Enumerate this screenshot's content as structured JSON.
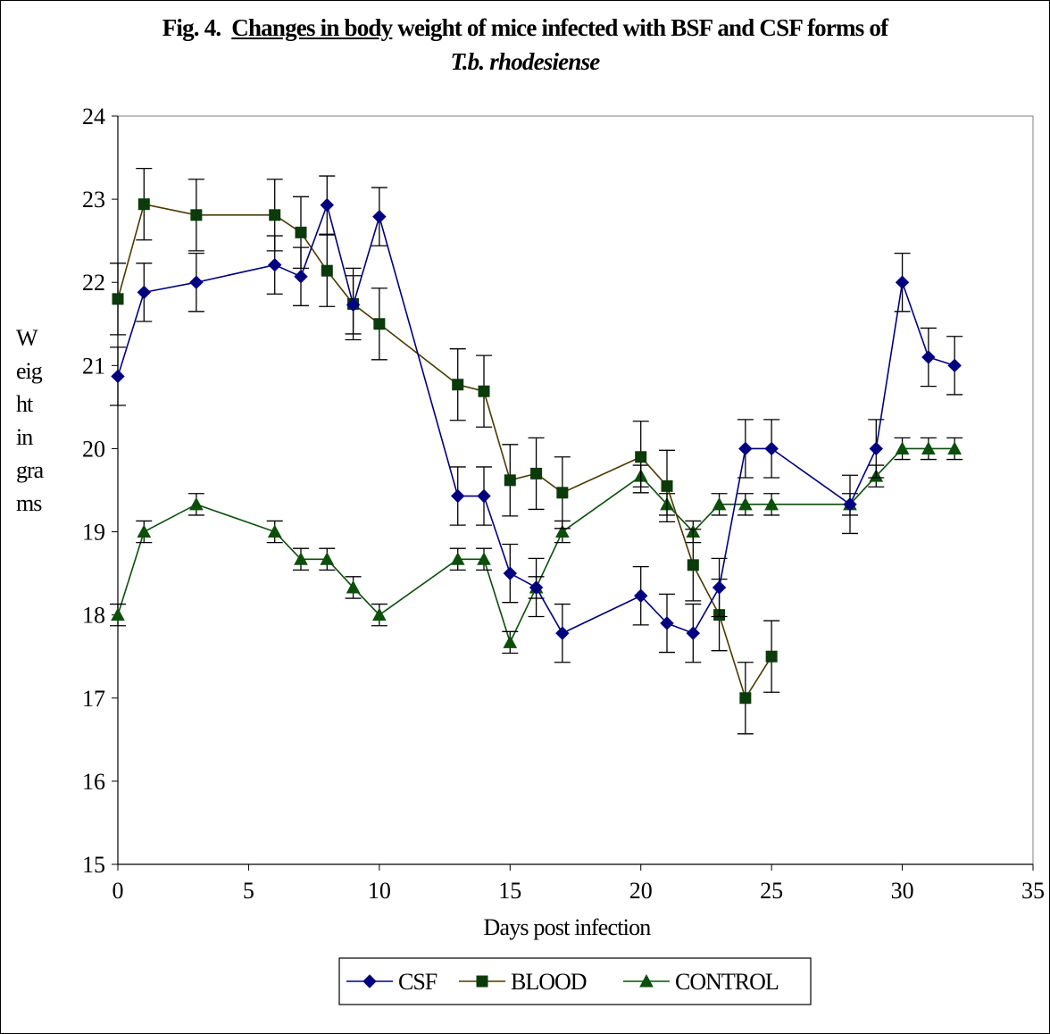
{
  "title": {
    "prefix": "Fig. 4.",
    "underlined": "Changes in body",
    "rest": " weight of mice infected with BSF and CSF forms of",
    "line2": "T.b. rhodesiense"
  },
  "chart_data": {
    "type": "line",
    "title": "Fig. 4.  Changes in body weight of mice infected with BSF and CSF forms of T.b. rhodesiense",
    "xlabel": "Days post infection",
    "ylabel_lines": [
      "W",
      "eig",
      "ht",
      "in",
      "gra",
      "ms"
    ],
    "xlim": [
      0,
      35
    ],
    "ylim": [
      15,
      24
    ],
    "xticks": [
      "0",
      "5",
      "10",
      "15",
      "20",
      "25",
      "30",
      "35"
    ],
    "yticks": [
      "15",
      "16",
      "17",
      "18",
      "19",
      "20",
      "21",
      "22",
      "23",
      "24"
    ],
    "grid": false,
    "legend_position": "bottom",
    "series": [
      {
        "name": "CSF",
        "color": "#000080",
        "marker": "diamond",
        "x": [
          0,
          1,
          3,
          6,
          7,
          8,
          9,
          10,
          13,
          14,
          15,
          16,
          17,
          20,
          21,
          22,
          23,
          24,
          25,
          28,
          29,
          30,
          31,
          32
        ],
        "y": [
          20.87,
          21.88,
          22.0,
          22.21,
          22.07,
          22.93,
          21.73,
          22.79,
          19.43,
          19.43,
          18.5,
          18.33,
          17.78,
          18.23,
          17.9,
          17.78,
          18.33,
          20.0,
          20.0,
          19.33,
          20.0,
          22.0,
          21.1,
          21.0
        ],
        "err": [
          0.35,
          0.35,
          0.35,
          0.35,
          0.35,
          0.35,
          0.35,
          0.35,
          0.35,
          0.35,
          0.35,
          0.35,
          0.35,
          0.35,
          0.35,
          0.35,
          0.35,
          0.35,
          0.35,
          0.35,
          0.35,
          0.35,
          0.35,
          0.35
        ]
      },
      {
        "name": "BLOOD",
        "color": "#0b3b0b",
        "line_color": "#4a3a00",
        "marker": "square",
        "x": [
          0,
          1,
          3,
          6,
          7,
          8,
          9,
          10,
          13,
          14,
          15,
          16,
          17,
          20,
          21,
          22,
          23,
          24,
          25
        ],
        "y": [
          21.8,
          22.94,
          22.81,
          22.81,
          22.6,
          22.14,
          21.74,
          21.5,
          20.77,
          20.69,
          19.62,
          19.7,
          19.47,
          19.9,
          19.55,
          18.6,
          18.0,
          17.0,
          17.5
        ],
        "err": [
          0.43,
          0.43,
          0.43,
          0.43,
          0.43,
          0.43,
          0.43,
          0.43,
          0.43,
          0.43,
          0.43,
          0.43,
          0.43,
          0.43,
          0.43,
          0.43,
          0.43,
          0.43,
          0.43
        ]
      },
      {
        "name": "CONTROL",
        "color": "#0b4f0b",
        "marker": "triangle",
        "x": [
          0,
          1,
          3,
          6,
          7,
          8,
          9,
          10,
          13,
          14,
          15,
          16,
          17,
          20,
          21,
          22,
          23,
          24,
          25,
          28,
          29,
          30,
          31,
          32
        ],
        "y": [
          18.0,
          19.0,
          19.33,
          19.0,
          18.67,
          18.67,
          18.33,
          18.0,
          18.67,
          18.67,
          17.67,
          18.33,
          19.0,
          19.67,
          19.33,
          19.0,
          19.33,
          19.33,
          19.33,
          19.33,
          19.67,
          20.0,
          20.0,
          20.0
        ],
        "err": [
          0.13,
          0.13,
          0.13,
          0.13,
          0.13,
          0.13,
          0.13,
          0.13,
          0.13,
          0.13,
          0.13,
          0.13,
          0.13,
          0.13,
          0.13,
          0.13,
          0.13,
          0.13,
          0.13,
          0.13,
          0.13,
          0.13,
          0.13,
          0.13
        ]
      }
    ]
  }
}
